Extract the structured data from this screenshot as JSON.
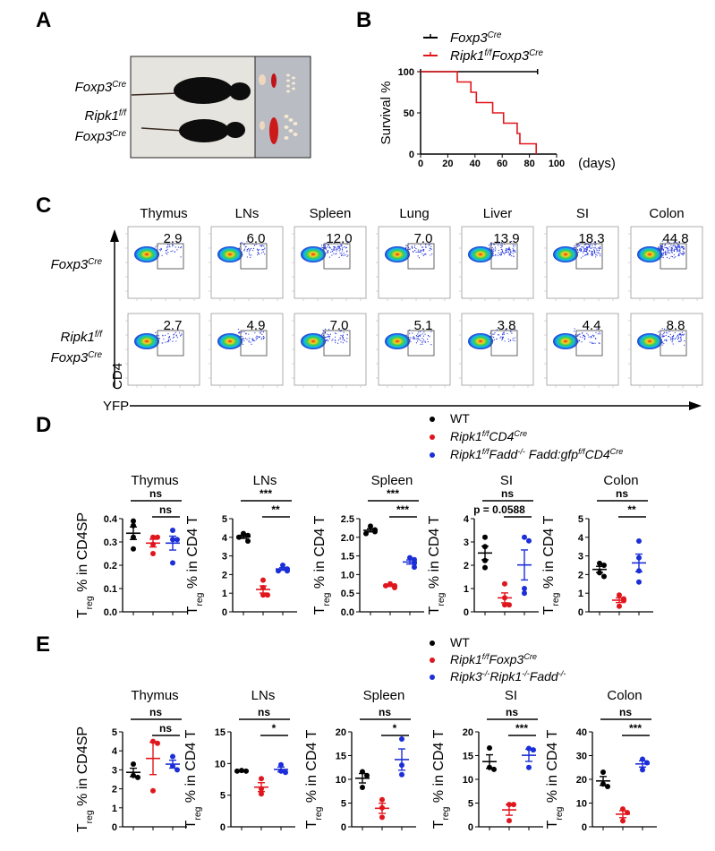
{
  "panel_labels": {
    "A": "A",
    "B": "B",
    "C": "C",
    "D": "D",
    "E": "E"
  },
  "genotypes": {
    "foxp3cre": [
      {
        "t": "Foxp3"
      },
      {
        "t": "Cre",
        "sup": true
      }
    ],
    "ripk1ff": [
      {
        "t": "Ripk1"
      },
      {
        "t": "f/f",
        "sup": true
      }
    ],
    "ripk1ff_foxp3cre": [
      {
        "t": "Ripk1"
      },
      {
        "t": "f/f",
        "sup": true
      },
      {
        "t": "Foxp3"
      },
      {
        "t": "Cre",
        "sup": true
      }
    ],
    "ripk1ff_cd4cre": [
      {
        "t": "Ripk1"
      },
      {
        "t": "f/f",
        "sup": true
      },
      {
        "t": "CD4"
      },
      {
        "t": "Cre",
        "sup": true
      }
    ],
    "ripk1ff_fadd_cd4cre": [
      {
        "t": "Ripk1"
      },
      {
        "t": "f/f",
        "sup": true
      },
      {
        "t": "Fadd"
      },
      {
        "t": "-/-",
        "sup": true
      },
      {
        "t": " Fadd:gfp"
      },
      {
        "t": "f/f",
        "sup": true
      },
      {
        "t": "CD4"
      },
      {
        "t": "Cre",
        "sup": true
      }
    ],
    "ripk3_ripk1_fadd": [
      {
        "t": "Ripk3"
      },
      {
        "t": "-/-",
        "sup": true
      },
      {
        "t": "Ripk1"
      },
      {
        "t": "-/-",
        "sup": true
      },
      {
        "t": "Fadd"
      },
      {
        "t": "-/-",
        "sup": true
      }
    ],
    "wt": [
      {
        "t": "WT"
      }
    ]
  },
  "colors": {
    "wt": "#000000",
    "red": "#e0161d",
    "blue": "#1b2ed8"
  },
  "panel_c": {
    "tissues": [
      "Thymus",
      "LNs",
      "Spleen",
      "Lung",
      "Liver",
      "SI",
      "Colon"
    ],
    "rows": [
      {
        "genotype": "foxp3cre",
        "values": [
          "2.9",
          "6.0",
          "12.0",
          "7.0",
          "13.9",
          "18.3",
          "44.8"
        ]
      },
      {
        "genotype": "ripk1ff_foxp3cre",
        "values": [
          "2.7",
          "4.9",
          "7.0",
          "5.1",
          "3.8",
          "4.4",
          "8.8"
        ]
      }
    ],
    "y_label": "CD4",
    "x_label": "YFP"
  },
  "legend_d": [
    {
      "genotype": "wt",
      "color": "#000000"
    },
    {
      "genotype": "ripk1ff_cd4cre",
      "color": "#e0161d"
    },
    {
      "genotype": "ripk1ff_fadd_cd4cre",
      "color": "#1b2ed8"
    }
  ],
  "legend_e": [
    {
      "genotype": "wt",
      "color": "#000000"
    },
    {
      "genotype": "ripk1ff_foxp3cre",
      "color": "#e0161d"
    },
    {
      "genotype": "ripk3_ripk1_fadd",
      "color": "#1b2ed8"
    }
  ],
  "chart_data": [
    {
      "panel": "B",
      "type": "line",
      "title": "",
      "xlabel": "(days)",
      "ylabel": "Survival %",
      "xlim": [
        0,
        100
      ],
      "ylim": [
        0,
        100
      ],
      "xticks": [
        "0",
        "20",
        "40",
        "60",
        "80",
        "100"
      ],
      "yticks": [
        "0",
        "50",
        "100"
      ],
      "legend_position": "top",
      "series": [
        {
          "legend": "foxp3cre",
          "color": "#000000",
          "points": [
            [
              0,
              100
            ],
            [
              86,
              100
            ]
          ]
        },
        {
          "legend": "ripk1ff_foxp3cre",
          "color": "#e0161d",
          "points": [
            [
              0,
              100
            ],
            [
              27,
              87.5
            ],
            [
              37,
              75
            ],
            [
              41,
              62.5
            ],
            [
              53,
              50
            ],
            [
              61,
              37.5
            ],
            [
              71,
              25
            ],
            [
              73,
              12.5
            ],
            [
              85,
              0
            ]
          ]
        }
      ]
    },
    {
      "panel": "D",
      "type": "scatter",
      "title": "Thymus",
      "ylabel": [
        {
          "t": "T"
        },
        {
          "t": "reg",
          "sub": true
        },
        {
          "t": " % in CD4SP"
        }
      ],
      "ylim": [
        0,
        0.4
      ],
      "yticks": [
        "0.0",
        "0.1",
        "0.2",
        "0.3",
        "0.4"
      ],
      "groups": [
        [
          0.39,
          0.37,
          0.32,
          0.27
        ],
        [
          0.32,
          0.32,
          0.29,
          0.25
        ],
        [
          0.35,
          0.31,
          0.31,
          0.21
        ]
      ],
      "sig": [
        "ns",
        "ns"
      ]
    },
    {
      "panel": "D",
      "type": "scatter",
      "title": "LNs",
      "ylabel": [
        {
          "t": "T"
        },
        {
          "t": "reg",
          "sub": true
        },
        {
          "t": " % in CD4 T"
        }
      ],
      "ylim": [
        0,
        5
      ],
      "yticks": [
        "0",
        "1",
        "2",
        "3",
        "4",
        "5"
      ],
      "groups": [
        [
          4.2,
          4.1,
          4.0,
          3.8
        ],
        [
          1.7,
          1.3,
          0.9,
          0.9
        ],
        [
          2.5,
          2.3,
          2.2,
          2.2
        ]
      ],
      "sig": [
        "***",
        "**"
      ]
    },
    {
      "panel": "D",
      "type": "scatter",
      "title": "Spleen",
      "ylabel": [
        {
          "t": "T"
        },
        {
          "t": "reg",
          "sub": true
        },
        {
          "t": " % in CD4 T"
        }
      ],
      "ylim": [
        0,
        2.5
      ],
      "yticks": [
        "0.0",
        "0.5",
        "1.0",
        "1.5",
        "2.0",
        "2.5"
      ],
      "groups": [
        [
          2.3,
          2.2,
          2.15,
          2.1
        ],
        [
          0.75,
          0.7,
          0.7,
          0.65
        ],
        [
          1.45,
          1.4,
          1.3,
          1.2
        ]
      ],
      "sig": [
        "***",
        "***"
      ]
    },
    {
      "panel": "D",
      "type": "scatter",
      "title": "SI",
      "ylabel": [
        {
          "t": "T"
        },
        {
          "t": "reg",
          "sub": true
        },
        {
          "t": " % in CD4 T"
        }
      ],
      "ylim": [
        0,
        4
      ],
      "yticks": [
        "0",
        "1",
        "2",
        "3",
        "4"
      ],
      "groups": [
        [
          3.2,
          2.8,
          2.2,
          1.9
        ],
        [
          1.2,
          0.6,
          0.3,
          0.3
        ],
        [
          3.2,
          3.05,
          1.0,
          0.8
        ]
      ],
      "sig": [
        "ns",
        "p = 0.0588"
      ]
    },
    {
      "panel": "D",
      "type": "scatter",
      "title": "Colon",
      "ylabel": [
        {
          "t": "T"
        },
        {
          "t": "reg",
          "sub": true
        },
        {
          "t": " % in CD4 T"
        }
      ],
      "ylim": [
        0,
        5
      ],
      "yticks": [
        "0",
        "1",
        "2",
        "3",
        "4",
        "5"
      ],
      "groups": [
        [
          2.6,
          2.5,
          2.1,
          1.9
        ],
        [
          0.9,
          0.7,
          0.6,
          0.3
        ],
        [
          3.8,
          2.9,
          2.2,
          1.6
        ]
      ],
      "sig": [
        "ns",
        "**"
      ]
    },
    {
      "panel": "E",
      "type": "scatter",
      "title": "Thymus",
      "ylabel": [
        {
          "t": "T"
        },
        {
          "t": "reg",
          "sub": true
        },
        {
          "t": " % in CD4SP"
        }
      ],
      "ylim": [
        0,
        5
      ],
      "yticks": [
        "0",
        "1",
        "2",
        "3",
        "4",
        "5"
      ],
      "groups": [
        [
          3.3,
          2.7,
          2.6
        ],
        [
          4.5,
          4.4,
          1.9
        ],
        [
          3.7,
          3.2,
          3.0
        ]
      ],
      "sig": [
        "ns",
        "ns"
      ]
    },
    {
      "panel": "E",
      "type": "scatter",
      "title": "LNs",
      "ylabel": [
        {
          "t": "T"
        },
        {
          "t": "reg",
          "sub": true
        },
        {
          "t": " % in CD4 T"
        }
      ],
      "ylim": [
        0,
        15
      ],
      "yticks": [
        "0",
        "5",
        "10",
        "15"
      ],
      "groups": [
        [
          8.9,
          8.8,
          8.8
        ],
        [
          7.6,
          6.0,
          5.2
        ],
        [
          9.8,
          8.8,
          8.6
        ]
      ],
      "sig": [
        "ns",
        "*"
      ]
    },
    {
      "panel": "E",
      "type": "scatter",
      "title": "Spleen",
      "ylabel": [
        {
          "t": "T"
        },
        {
          "t": "reg",
          "sub": true
        },
        {
          "t": " % in CD4 T"
        }
      ],
      "ylim": [
        0,
        20
      ],
      "yticks": [
        "0",
        "5",
        "10",
        "15",
        "20"
      ],
      "groups": [
        [
          11.6,
          10.8,
          8.3
        ],
        [
          5.7,
          4.0,
          2.0
        ],
        [
          18.5,
          13.0,
          11.0
        ]
      ],
      "sig": [
        "ns",
        "*"
      ]
    },
    {
      "panel": "E",
      "type": "scatter",
      "title": "SI",
      "ylabel": [
        {
          "t": "T"
        },
        {
          "t": "reg",
          "sub": true
        },
        {
          "t": " % in CD4 T"
        }
      ],
      "ylim": [
        0,
        20
      ],
      "yticks": [
        "0",
        "5",
        "10",
        "15",
        "20"
      ],
      "groups": [
        [
          16.6,
          12.5,
          12.1
        ],
        [
          4.7,
          4.7,
          1.3
        ],
        [
          16.5,
          16.2,
          12.5
        ]
      ],
      "sig": [
        "ns",
        "***"
      ]
    },
    {
      "panel": "E",
      "type": "scatter",
      "title": "Colon",
      "ylabel": [
        {
          "t": "T"
        },
        {
          "t": "reg",
          "sub": true
        },
        {
          "t": " % in CD4 T"
        }
      ],
      "ylim": [
        0,
        40
      ],
      "yticks": [
        "0",
        "10",
        "20",
        "30",
        "40"
      ],
      "groups": [
        [
          23,
          18,
          17
        ],
        [
          7.5,
          6,
          2.5
        ],
        [
          28.5,
          27,
          24
        ]
      ],
      "sig": [
        "ns",
        "***"
      ]
    }
  ]
}
